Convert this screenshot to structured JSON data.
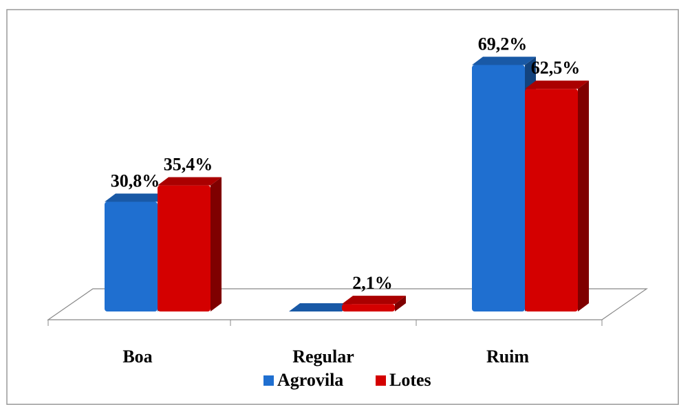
{
  "chart_data": {
    "type": "bar3d",
    "categories": [
      "Boa",
      "Regular",
      "Ruim"
    ],
    "series": [
      {
        "name": "Agrovila",
        "color": "#1f6fd0",
        "values": [
          30.8,
          0,
          69.2
        ],
        "value_labels": [
          "30,8%",
          null,
          "69,2%"
        ]
      },
      {
        "name": "Lotes",
        "color": "#d40000",
        "values": [
          35.4,
          2.1,
          62.5
        ],
        "value_labels": [
          "35,4%",
          "2,1%",
          "62,5%"
        ]
      }
    ],
    "legend": "bottom"
  }
}
